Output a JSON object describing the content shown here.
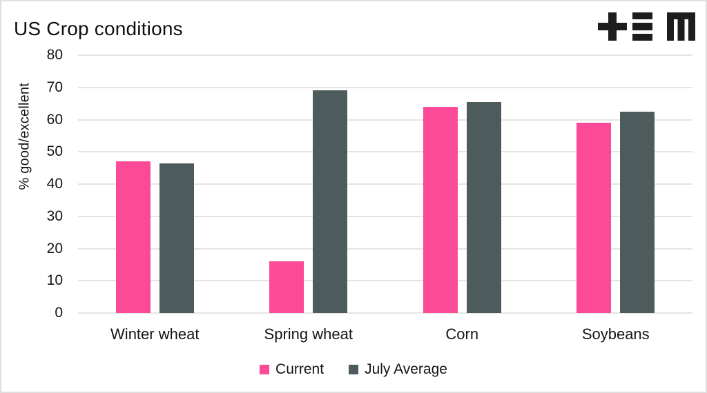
{
  "page": {
    "title": "US Crop conditions",
    "logo_name": "tem-logo"
  },
  "chart_data": {
    "type": "bar",
    "title": "US Crop conditions",
    "categories": [
      "Winter wheat",
      "Spring wheat",
      "Corn",
      "Soybeans"
    ],
    "series": [
      {
        "name": "Current",
        "color": "#fc4a96",
        "values": [
          47,
          16,
          64,
          59
        ]
      },
      {
        "name": "July Average",
        "color": "#4d5b5c",
        "values": [
          46.5,
          69,
          65.5,
          62.5
        ]
      }
    ],
    "xlabel": "",
    "ylabel": "% good/excellent",
    "ylim": [
      0,
      80
    ],
    "yticks": [
      0,
      10,
      20,
      30,
      40,
      50,
      60,
      70,
      80
    ],
    "grid": true,
    "legend_position": "bottom",
    "colors": {
      "grid": "#e4e4e4",
      "text": "#141414",
      "background": "#ffffff"
    }
  }
}
